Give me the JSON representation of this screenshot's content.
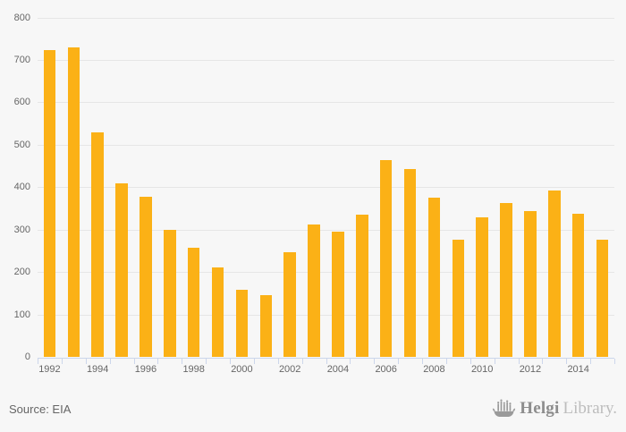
{
  "chart_data": {
    "type": "bar",
    "title": "",
    "xlabel": "",
    "ylabel": "",
    "categories": [
      "1992",
      "1993",
      "1994",
      "1995",
      "1996",
      "1997",
      "1998",
      "1999",
      "2000",
      "2001",
      "2002",
      "2003",
      "2004",
      "2005",
      "2006",
      "2007",
      "2008",
      "2009",
      "2010",
      "2011",
      "2012",
      "2013",
      "2014",
      "2015"
    ],
    "values": [
      724,
      731,
      531,
      411,
      378,
      301,
      259,
      211,
      160,
      146,
      248,
      313,
      297,
      336,
      465,
      444,
      376,
      277,
      329,
      364,
      345,
      394,
      339,
      277
    ],
    "ylim": [
      0,
      800
    ],
    "ytick_interval": 100,
    "ytick_labels": [
      "0",
      "100",
      "200",
      "300",
      "400",
      "500",
      "600",
      "700",
      "800"
    ],
    "xtick_labels": [
      "1992",
      "1994",
      "1996",
      "1998",
      "2000",
      "2002",
      "2004",
      "2006",
      "2008",
      "2010",
      "2012",
      "2014"
    ],
    "grid": true,
    "legend": "none",
    "colors": {
      "bar": "#FBB116",
      "grid": "#E6E6E6",
      "axis": "#CCD6EB",
      "label": "#666666",
      "background": "#F7F7F7"
    }
  },
  "footer": {
    "source_label": "Source: EIA"
  },
  "logo": {
    "brand": "Helgi",
    "brand_suffix": "Library."
  }
}
